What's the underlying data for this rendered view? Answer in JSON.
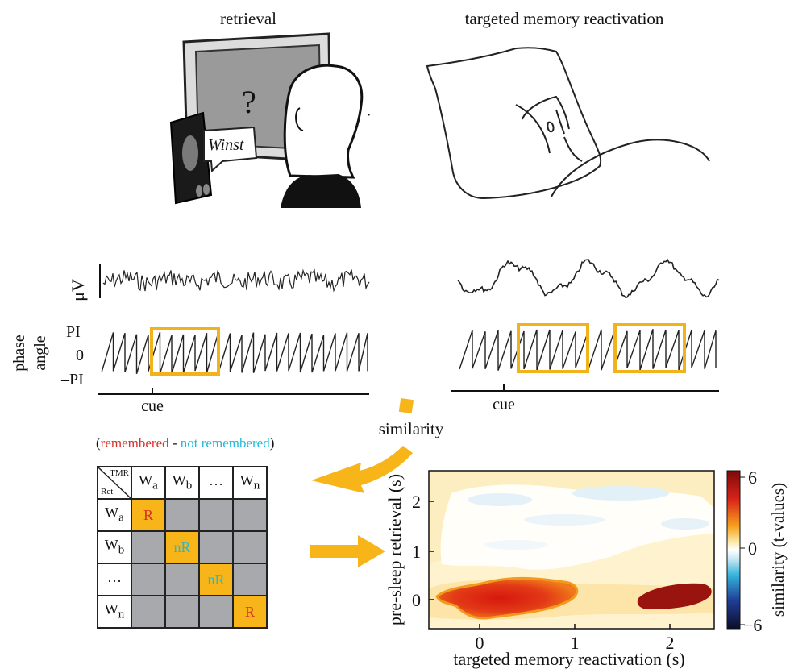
{
  "panels": {
    "retrieval_title": "retrieval",
    "tmr_title": "targeted memory reactivation",
    "speech_word": "Winst",
    "question_mark": "?"
  },
  "eeg": {
    "amplitude_label": "μV",
    "phase_label_line1": "phase",
    "phase_label_line2": "angle",
    "phase_ticks": [
      "PI",
      "0",
      "–PI"
    ],
    "cue_label": "cue"
  },
  "similarity_label": "similarity",
  "legend": {
    "open": "(",
    "remembered": "remembered",
    "dash": " - ",
    "not_remembered": "not remembered",
    "close": ")",
    "remembered_color": "#d8302a",
    "not_remembered_color": "#23b9d8"
  },
  "matrix": {
    "corner_top": "TMR",
    "corner_bottom": "Ret",
    "columns": [
      {
        "base": "W",
        "sub": "a"
      },
      {
        "base": "W",
        "sub": "b"
      },
      {
        "base": "…",
        "sub": ""
      },
      {
        "base": "W",
        "sub": "n"
      }
    ],
    "rows": [
      {
        "base": "W",
        "sub": "a"
      },
      {
        "base": "W",
        "sub": "b"
      },
      {
        "base": "…",
        "sub": ""
      },
      {
        "base": "W",
        "sub": "n"
      }
    ],
    "diagonal": [
      "R",
      "nR",
      "nR",
      "R"
    ]
  },
  "heatmap": {
    "xlabel": "targeted memory reactivation (s)",
    "ylabel": "pre-sleep retrieval (s)",
    "colorbar_label": "similarity (t-values)",
    "x_ticks": [
      "0",
      "1",
      "2"
    ],
    "y_ticks": [
      "0",
      "1",
      "2"
    ],
    "colorbar_ticks": [
      "6",
      "0",
      "−6"
    ]
  },
  "colors": {
    "accent_orange": "#f7b519",
    "grey_cell": "#a7a9ac"
  }
}
